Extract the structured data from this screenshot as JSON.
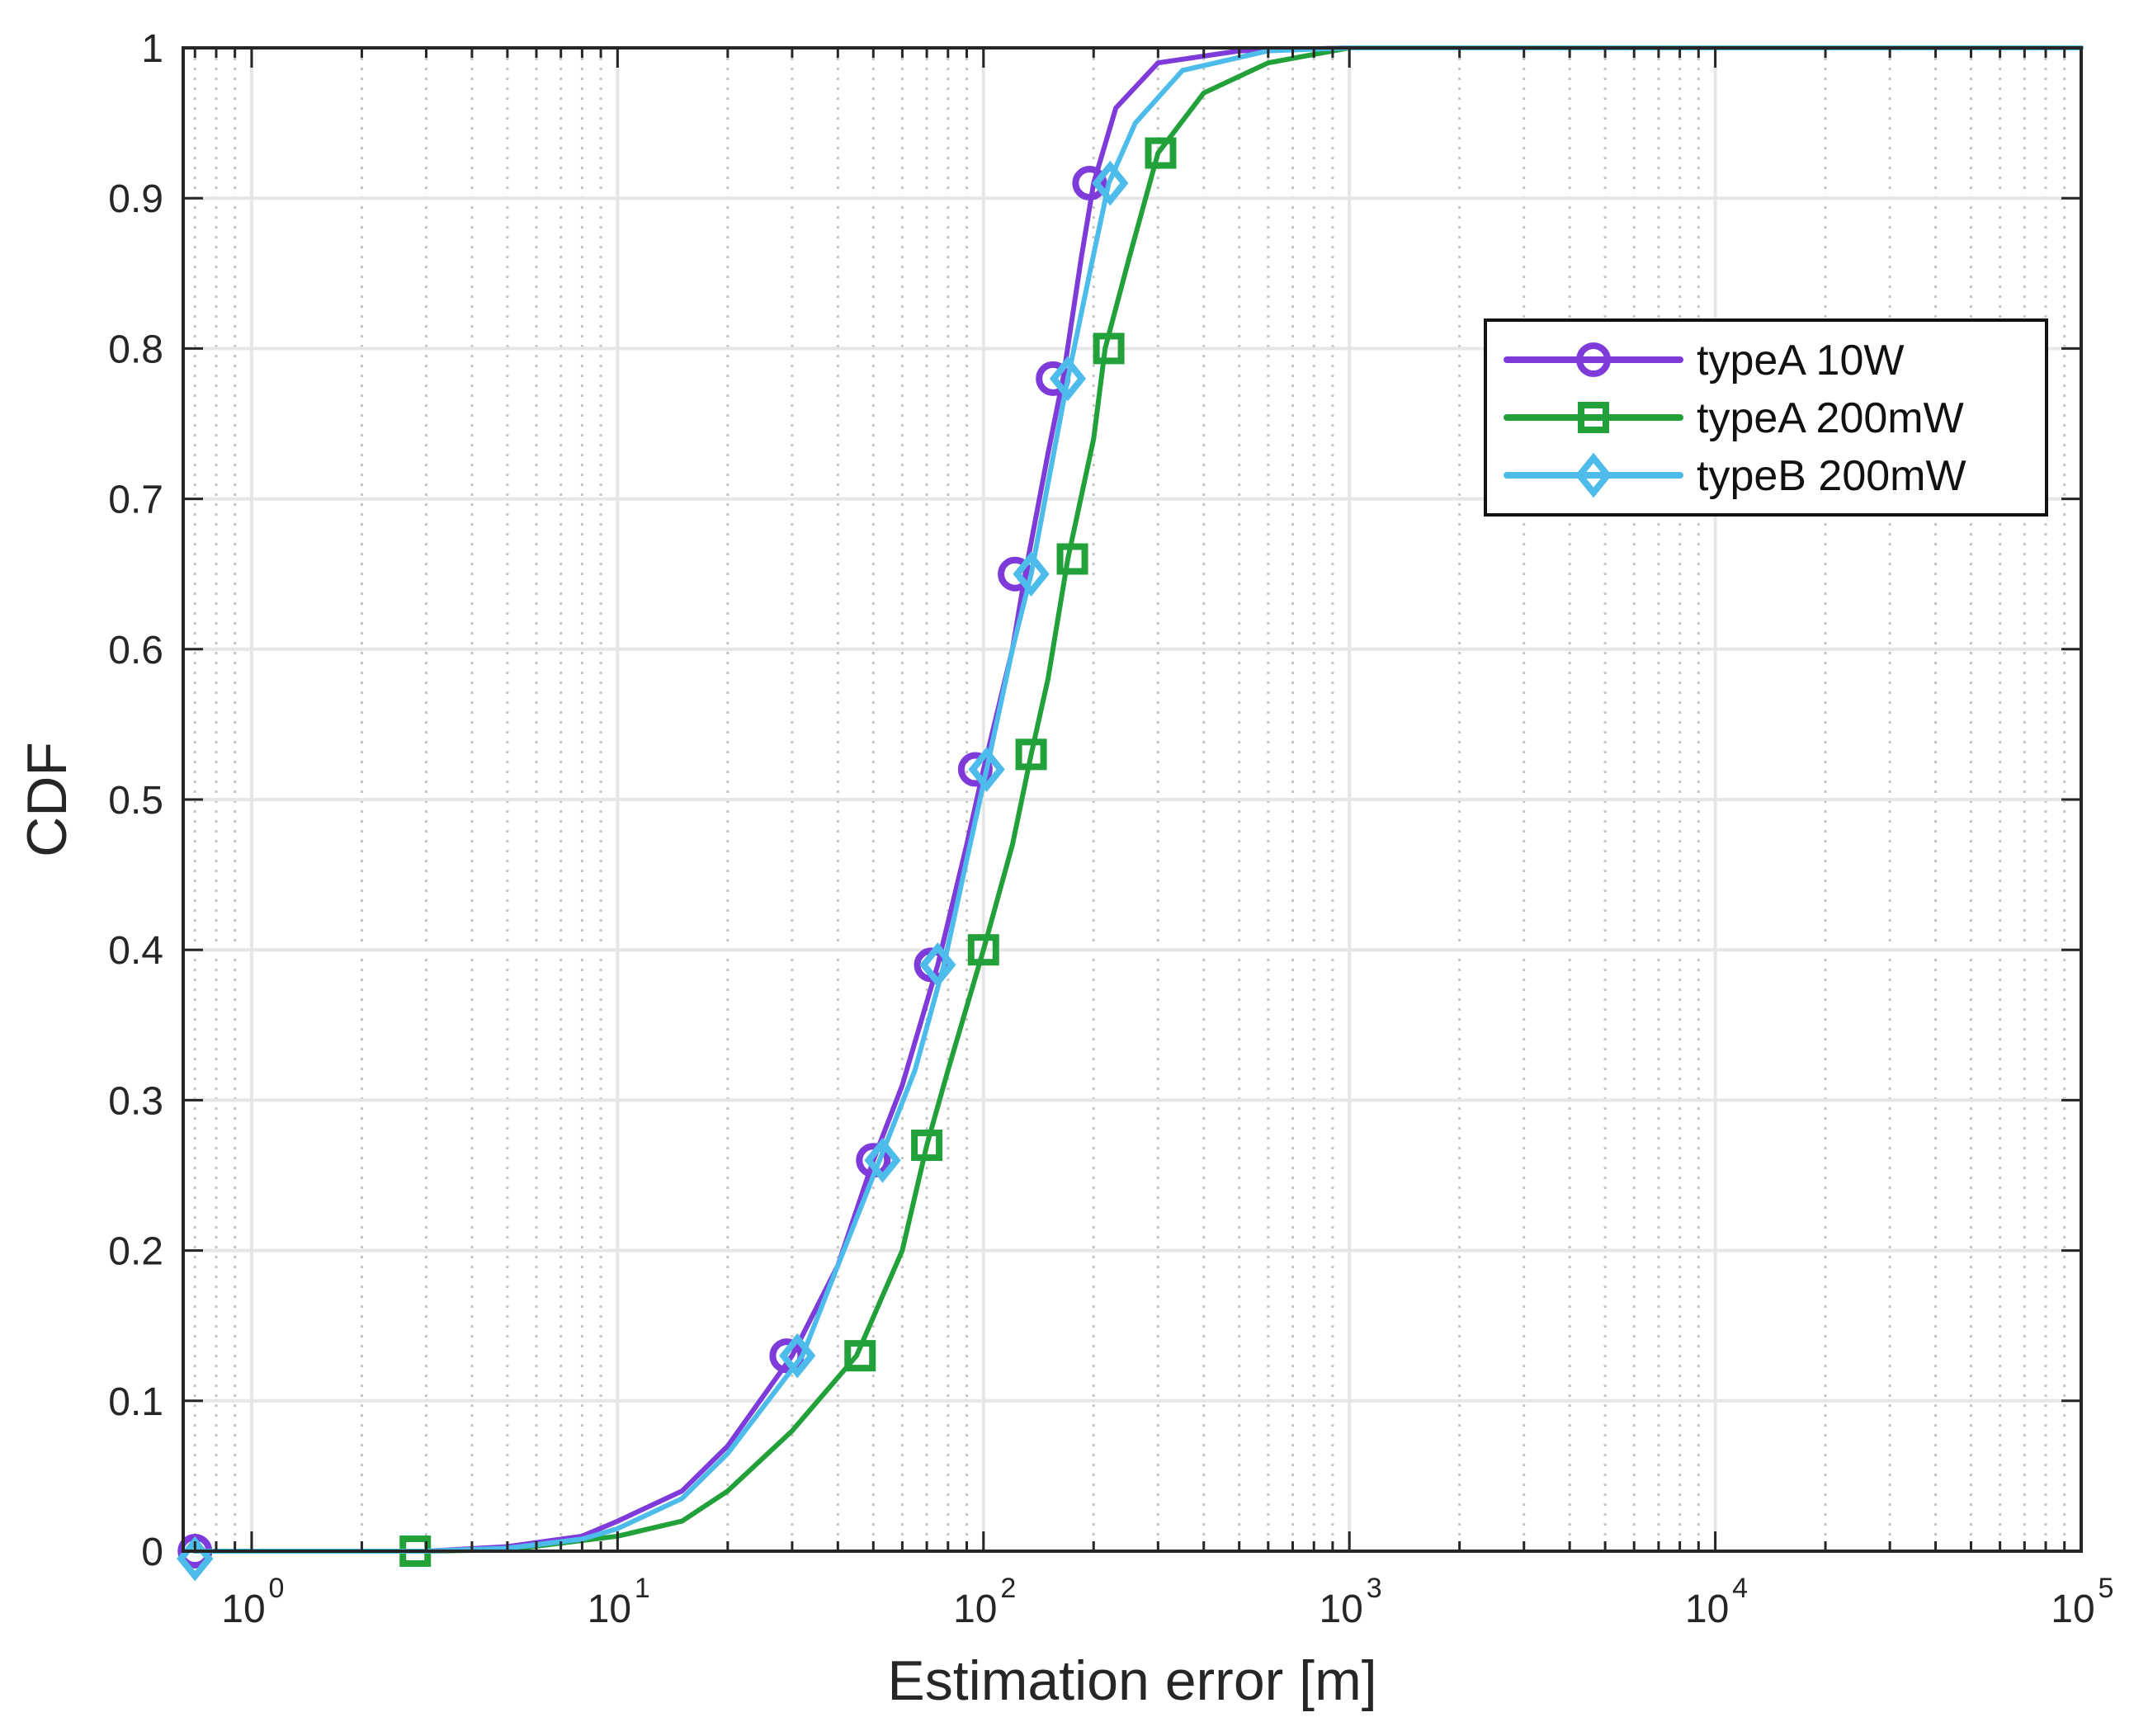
{
  "chart_data": {
    "type": "line",
    "xscale": "log",
    "title": "",
    "xlabel": "Estimation error [m]",
    "ylabel": "CDF",
    "xlim": [
      0.65,
      100000
    ],
    "ylim": [
      0,
      1
    ],
    "grid": true,
    "legend_position": "top-right",
    "x_ticks": [
      {
        "value": 1,
        "base": "10",
        "exp": "0"
      },
      {
        "value": 10,
        "base": "10",
        "exp": "1"
      },
      {
        "value": 100,
        "base": "10",
        "exp": "2"
      },
      {
        "value": 1000,
        "base": "10",
        "exp": "3"
      },
      {
        "value": 10000,
        "base": "10",
        "exp": "4"
      },
      {
        "value": 100000,
        "base": "10",
        "exp": "5"
      }
    ],
    "y_ticks": [
      {
        "value": 0,
        "label": "0"
      },
      {
        "value": 0.1,
        "label": "0.1"
      },
      {
        "value": 0.2,
        "label": "0.2"
      },
      {
        "value": 0.3,
        "label": "0.3"
      },
      {
        "value": 0.4,
        "label": "0.4"
      },
      {
        "value": 0.5,
        "label": "0.5"
      },
      {
        "value": 0.6,
        "label": "0.6"
      },
      {
        "value": 0.7,
        "label": "0.7"
      },
      {
        "value": 0.8,
        "label": "0.8"
      },
      {
        "value": 0.9,
        "label": "0.9"
      },
      {
        "value": 1,
        "label": "1"
      }
    ],
    "series": [
      {
        "name": "typeA 10W",
        "color": "#7E3BD9",
        "marker": "circle",
        "curve": [
          [
            0.7,
            0
          ],
          [
            3,
            0
          ],
          [
            5,
            0.003
          ],
          [
            8,
            0.01
          ],
          [
            10,
            0.02
          ],
          [
            15,
            0.04
          ],
          [
            20,
            0.07
          ],
          [
            30,
            0.13
          ],
          [
            40,
            0.19
          ],
          [
            50,
            0.26
          ],
          [
            60,
            0.31
          ],
          [
            75,
            0.39
          ],
          [
            90,
            0.47
          ],
          [
            100,
            0.52
          ],
          [
            120,
            0.6
          ],
          [
            130,
            0.65
          ],
          [
            150,
            0.73
          ],
          [
            165,
            0.78
          ],
          [
            185,
            0.86
          ],
          [
            200,
            0.91
          ],
          [
            230,
            0.96
          ],
          [
            300,
            0.99
          ],
          [
            500,
            0.998
          ],
          [
            1000,
            1
          ],
          [
            100000,
            1
          ]
        ],
        "markers": [
          [
            0.7,
            0
          ],
          [
            29,
            0.13
          ],
          [
            50,
            0.26
          ],
          [
            72,
            0.39
          ],
          [
            95,
            0.52
          ],
          [
            122,
            0.65
          ],
          [
            155,
            0.78
          ],
          [
            195,
            0.91
          ]
        ]
      },
      {
        "name": "typeA 200mW",
        "color": "#22A03A",
        "marker": "square",
        "curve": [
          [
            0.7,
            0
          ],
          [
            3,
            0
          ],
          [
            5,
            0.001
          ],
          [
            10,
            0.01
          ],
          [
            15,
            0.02
          ],
          [
            20,
            0.04
          ],
          [
            30,
            0.08
          ],
          [
            45,
            0.13
          ],
          [
            60,
            0.2
          ],
          [
            70,
            0.27
          ],
          [
            80,
            0.32
          ],
          [
            100,
            0.4
          ],
          [
            120,
            0.47
          ],
          [
            135,
            0.53
          ],
          [
            150,
            0.58
          ],
          [
            170,
            0.66
          ],
          [
            200,
            0.74
          ],
          [
            215,
            0.8
          ],
          [
            250,
            0.86
          ],
          [
            300,
            0.93
          ],
          [
            400,
            0.97
          ],
          [
            600,
            0.99
          ],
          [
            1000,
            1
          ],
          [
            100000,
            1
          ]
        ],
        "markers": [
          [
            2.8,
            0
          ],
          [
            46,
            0.13
          ],
          [
            70,
            0.27
          ],
          [
            100,
            0.4
          ],
          [
            135,
            0.53
          ],
          [
            175,
            0.66
          ],
          [
            220,
            0.8
          ],
          [
            305,
            0.93
          ]
        ]
      },
      {
        "name": "typeB 200mW",
        "color": "#4DBCEB",
        "marker": "diamond",
        "curve": [
          [
            0.7,
            0
          ],
          [
            3,
            0
          ],
          [
            5,
            0.002
          ],
          [
            8,
            0.008
          ],
          [
            10,
            0.015
          ],
          [
            15,
            0.035
          ],
          [
            20,
            0.065
          ],
          [
            32,
            0.13
          ],
          [
            40,
            0.19
          ],
          [
            52,
            0.26
          ],
          [
            65,
            0.32
          ],
          [
            78,
            0.39
          ],
          [
            90,
            0.46
          ],
          [
            102,
            0.52
          ],
          [
            120,
            0.6
          ],
          [
            135,
            0.65
          ],
          [
            150,
            0.71
          ],
          [
            170,
            0.78
          ],
          [
            195,
            0.85
          ],
          [
            220,
            0.91
          ],
          [
            260,
            0.95
          ],
          [
            350,
            0.985
          ],
          [
            600,
            0.998
          ],
          [
            1000,
            1
          ],
          [
            40000,
            1
          ],
          [
            100000,
            1
          ]
        ],
        "markers": [
          [
            0.7,
            -0.005
          ],
          [
            31,
            0.13
          ],
          [
            53,
            0.26
          ],
          [
            75,
            0.39
          ],
          [
            102,
            0.52
          ],
          [
            135,
            0.65
          ],
          [
            170,
            0.78
          ],
          [
            222,
            0.91
          ]
        ]
      }
    ]
  }
}
